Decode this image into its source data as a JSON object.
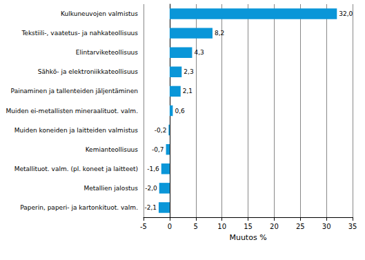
{
  "chart_data": {
    "type": "bar",
    "orientation": "horizontal",
    "x_label": "Muutos %",
    "categories": [
      "Kulkuneuvojen valmistus",
      "Tekstiili-, vaatetus- ja nahkateollisuus",
      "Elintarviketeollisuus",
      "Sähkö- ja elektroniikkateollisuus",
      "Painaminen ja tallenteiden jäljentäminen",
      "Muiden ei-metallisten mineraalituot. valm.",
      "Muiden koneiden ja laitteiden valmistus",
      "Kemianteollisuus",
      "Metallituot. valm. (pl. koneet ja laitteet)",
      "Metallien jalostus",
      "Paperin, paperi- ja kartonkituot. valm."
    ],
    "values": [
      32.0,
      8.2,
      4.3,
      2.3,
      2.1,
      0.6,
      -0.2,
      -0.7,
      -1.6,
      -2.0,
      -2.1
    ],
    "value_labels": [
      "32,0",
      "8,2",
      "4,3",
      "2,3",
      "2,1",
      "0,6",
      "-0,2",
      "-0,7",
      "-1,6",
      "-2,0",
      "-2,1"
    ],
    "data_labels": true,
    "color": "#0a96d8",
    "xlim": [
      -5,
      35
    ],
    "xticks": [
      -5,
      0,
      5,
      10,
      15,
      20,
      25,
      30,
      35
    ],
    "grid": true
  }
}
